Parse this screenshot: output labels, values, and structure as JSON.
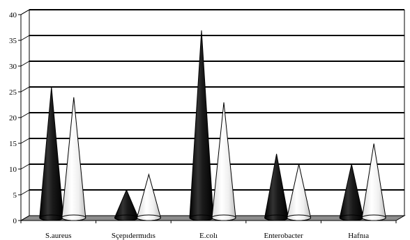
{
  "chart_data": {
    "type": "bar",
    "style": "3d-cone",
    "title": "",
    "xlabel": "",
    "ylabel": "",
    "ylim": [
      0,
      40
    ],
    "yticks": [
      "0",
      "5",
      "10",
      "15",
      "20",
      "25",
      "30",
      "35",
      "40"
    ],
    "grid": true,
    "legend": "none",
    "categories": [
      "S.aureus",
      "Sçepıdermıdıs",
      "E.colı",
      "Enterobacter",
      "Hafnıa"
    ],
    "series": [
      {
        "values": [
          25,
          5,
          36,
          12,
          10
        ],
        "color": "#111111"
      },
      {
        "values": [
          23,
          8,
          22,
          10,
          14
        ],
        "color": "#f2f2f2"
      }
    ]
  }
}
